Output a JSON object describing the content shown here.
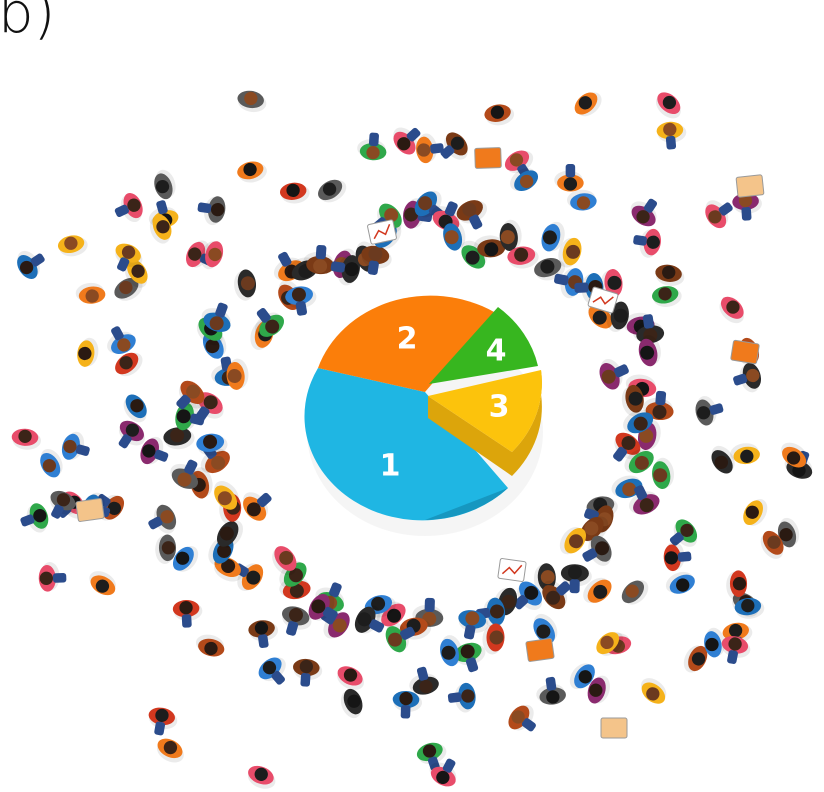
{
  "figure_label": "b)",
  "pie": {
    "slices": [
      {
        "label": "1",
        "color": "#1fb6e3",
        "side": "#1697c0"
      },
      {
        "label": "2",
        "color": "#fb7e0a",
        "side": "#d96a06"
      },
      {
        "label": "3",
        "color": "#fcc30c",
        "side": "#dca50b"
      },
      {
        "label": "4",
        "color": "#37b61f",
        "side": "#2a9416"
      }
    ]
  },
  "palette": {
    "hair": [
      "#3b2418",
      "#1d1d1d",
      "#6b3a1f",
      "#2a1a12",
      "#8a4a22",
      "#151515"
    ],
    "shirt": [
      "#2f7fd3",
      "#f07a1c",
      "#e84c6a",
      "#2fa84a",
      "#7a3a16",
      "#d2381f",
      "#1d6fb8",
      "#f5b21a",
      "#8a2a6e",
      "#5a5a5a",
      "#b34a1a",
      "#2a2a2a"
    ]
  },
  "icons": [
    "person-icon",
    "chart-card-icon",
    "pizza-box-icon",
    "gift-box-icon",
    "laptop-icon"
  ]
}
